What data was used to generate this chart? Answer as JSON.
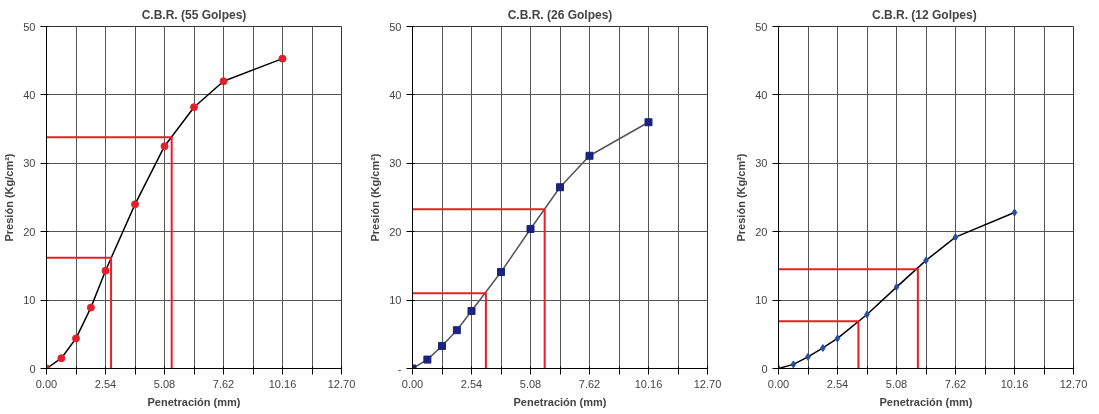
{
  "chart_data": [
    {
      "type": "line",
      "title": "C.B.R. (55 Golpes)",
      "xlabel": "Penetración (mm)",
      "ylabel": "Presión (Kg/cm²)",
      "xlim": [
        0,
        12.7
      ],
      "ylim": [
        0,
        50
      ],
      "xticks": [
        {
          "value": 0,
          "label": "0.00"
        },
        {
          "value": 1.27,
          "label": null
        },
        {
          "value": 2.54,
          "label": "2.54"
        },
        {
          "value": 3.81,
          "label": null
        },
        {
          "value": 5.08,
          "label": "5.08"
        },
        {
          "value": 6.35,
          "label": null
        },
        {
          "value": 7.62,
          "label": "7.62"
        },
        {
          "value": 8.89,
          "label": null
        },
        {
          "value": 10.16,
          "label": "10.16"
        },
        {
          "value": 11.43,
          "label": null
        },
        {
          "value": 12.7,
          "label": "12.70"
        }
      ],
      "yticks": [
        0,
        10,
        20,
        30,
        40,
        50
      ],
      "grid": true,
      "x": [
        0,
        0.64,
        1.27,
        1.91,
        2.54,
        3.81,
        5.08,
        6.35,
        7.62,
        10.16
      ],
      "series": [
        {
          "type": "line",
          "color": "#000000",
          "marker": "none",
          "values": [
            0,
            1.5,
            4.4,
            8.9,
            14.3,
            24.0,
            32.5,
            38.2,
            42.0,
            45.3
          ]
        },
        {
          "type": "scatter",
          "color": "#e0202a",
          "marker": "circle",
          "values": [
            0,
            1.5,
            4.4,
            8.9,
            14.3,
            24.0,
            32.5,
            38.2,
            42.0,
            45.3
          ]
        },
        {
          "type": "line",
          "color": "#ee1c25",
          "marker": "none",
          "x": [
            0,
            2.78,
            2.78
          ],
          "values": [
            16.2,
            16.2,
            0
          ]
        },
        {
          "type": "line",
          "color": "#ee1c25",
          "marker": "none",
          "x": [
            0,
            5.39,
            5.39
          ],
          "values": [
            33.8,
            33.8,
            0
          ]
        }
      ]
    },
    {
      "type": "line",
      "title": "C.B.R. (26 Golpes)",
      "xlabel": "Penetración (mm)",
      "ylabel": "Presión (Kg/cm²)",
      "xlim": [
        0,
        12.7
      ],
      "ylim": [
        0,
        50
      ],
      "xticks": [
        {
          "value": 0,
          "label": "0.00"
        },
        {
          "value": 1.27,
          "label": null
        },
        {
          "value": 2.54,
          "label": "2.54"
        },
        {
          "value": 3.81,
          "label": null
        },
        {
          "value": 5.08,
          "label": "5.08"
        },
        {
          "value": 6.35,
          "label": null
        },
        {
          "value": 7.62,
          "label": "7.62"
        },
        {
          "value": 8.89,
          "label": null
        },
        {
          "value": 10.16,
          "label": "10.16"
        },
        {
          "value": 11.43,
          "label": null
        },
        {
          "value": 12.7,
          "label": "12.70"
        }
      ],
      "yticks": [
        {
          "value": 0,
          "label": "-"
        },
        10,
        20,
        30,
        40,
        50
      ],
      "grid": true,
      "x": [
        0,
        0.64,
        1.27,
        1.91,
        2.54,
        3.81,
        5.08,
        6.35,
        7.62,
        10.16
      ],
      "series": [
        {
          "type": "line",
          "color": "#555555",
          "marker": "none",
          "values": [
            0,
            1.3,
            3.3,
            5.6,
            8.4,
            14.1,
            20.4,
            26.5,
            31.1,
            36.0
          ]
        },
        {
          "type": "scatter",
          "color": "#1a237e",
          "marker": "square",
          "values": [
            0,
            1.3,
            3.3,
            5.6,
            8.4,
            14.1,
            20.4,
            26.5,
            31.1,
            36.0
          ]
        },
        {
          "type": "line",
          "color": "#ee1c25",
          "marker": "none",
          "x": [
            0,
            3.16,
            3.16
          ],
          "values": [
            11.0,
            11.0,
            0
          ]
        },
        {
          "type": "line",
          "color": "#ee1c25",
          "marker": "none",
          "x": [
            0,
            5.69,
            5.69
          ],
          "values": [
            23.3,
            23.3,
            0
          ]
        }
      ]
    },
    {
      "type": "line",
      "title": "C.B.R.  (12 Golpes)",
      "xlabel": "Penetración (mm)",
      "ylabel": "Presión (Kg/cm²)",
      "xlim": [
        0,
        12.7
      ],
      "ylim": [
        0,
        50
      ],
      "xticks": [
        {
          "value": 0,
          "label": "0.00"
        },
        {
          "value": 1.27,
          "label": null
        },
        {
          "value": 2.54,
          "label": "2.54"
        },
        {
          "value": 3.81,
          "label": null
        },
        {
          "value": 5.08,
          "label": "5.08"
        },
        {
          "value": 6.35,
          "label": null
        },
        {
          "value": 7.62,
          "label": "7.62"
        },
        {
          "value": 8.89,
          "label": null
        },
        {
          "value": 10.16,
          "label": "10.16"
        },
        {
          "value": 11.43,
          "label": null
        },
        {
          "value": 12.7,
          "label": "12.70"
        }
      ],
      "yticks": [
        0,
        10,
        20,
        30,
        40,
        50
      ],
      "grid": true,
      "x": [
        0,
        0.64,
        1.27,
        1.91,
        2.54,
        3.81,
        5.08,
        6.35,
        7.62,
        10.16
      ],
      "series": [
        {
          "type": "line",
          "color": "#000000",
          "marker": "none",
          "values": [
            0,
            0.6,
            1.7,
            3.0,
            4.4,
            7.9,
            11.9,
            15.8,
            19.2,
            22.8
          ]
        },
        {
          "type": "scatter",
          "color": "#2a4fa0",
          "marker": "diamond",
          "values": [
            0,
            0.6,
            1.7,
            3.0,
            4.4,
            7.9,
            11.9,
            15.8,
            19.2,
            22.8
          ]
        },
        {
          "type": "line",
          "color": "#ee1c25",
          "marker": "none",
          "x": [
            0,
            3.44,
            3.44
          ],
          "values": [
            6.9,
            6.9,
            0
          ]
        },
        {
          "type": "line",
          "color": "#ee1c25",
          "marker": "none",
          "x": [
            0,
            6.0,
            6.0
          ],
          "values": [
            14.5,
            14.5,
            0
          ]
        }
      ]
    }
  ]
}
